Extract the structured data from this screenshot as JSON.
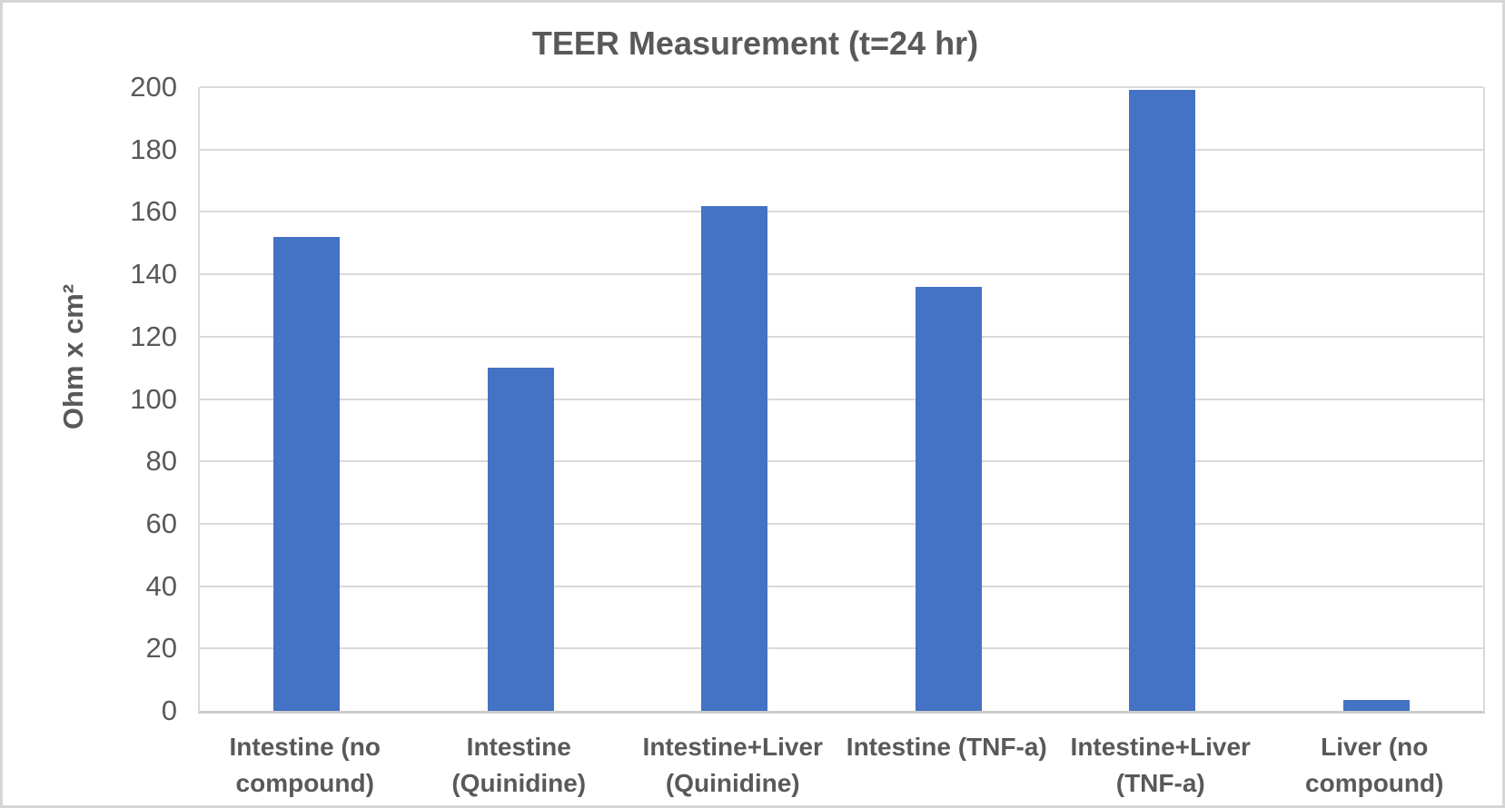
{
  "title": "TEER Measurement (t=24 hr)",
  "chart_data": {
    "type": "bar",
    "title": "TEER Measurement (t=24 hr)",
    "xlabel": "",
    "ylabel": "Ohm x cm²",
    "categories": [
      "Intestine (no\ncompound)",
      "Intestine\n(Quinidine)",
      "Intestine+Liver\n(Quinidine)",
      "Intestine (TNF-a)",
      "Intestine+Liver\n(TNF-a)",
      "Liver (no\ncompound)"
    ],
    "values": [
      152,
      110,
      162,
      136,
      199,
      3.5
    ],
    "ylim": [
      0,
      200
    ],
    "ytick_step": 20,
    "yticks": [
      0,
      20,
      40,
      60,
      80,
      100,
      120,
      140,
      160,
      180,
      200
    ],
    "grid": true,
    "legend": false,
    "bar_color": "#4472C4"
  },
  "colors": {
    "bar": "#4472C4",
    "text": "#595959",
    "gridline": "#d9d9d9",
    "axis_line": "#cccccc",
    "frame_border": "#d6d6d6",
    "background": "#ffffff"
  }
}
